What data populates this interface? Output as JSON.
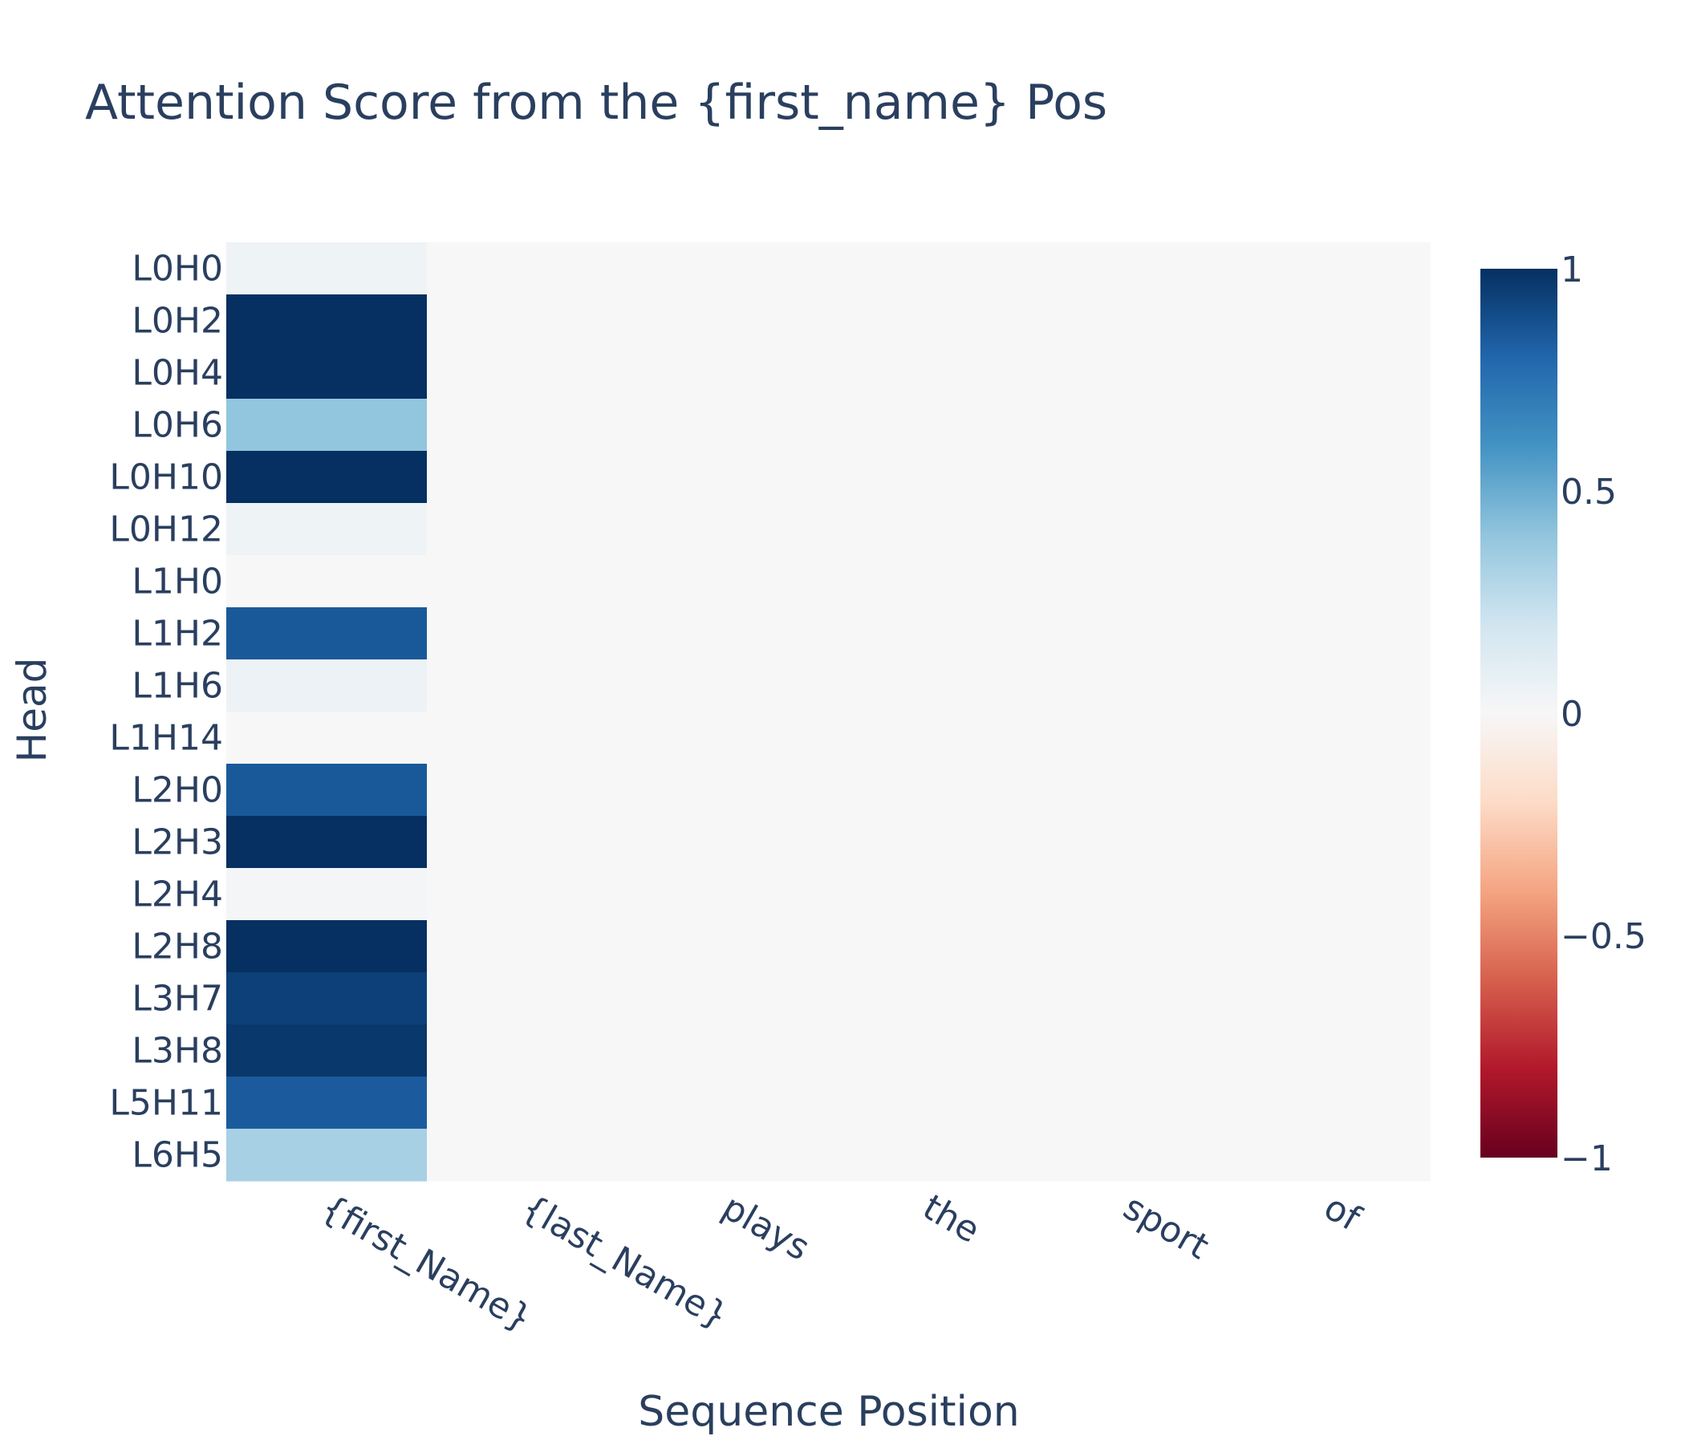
{
  "chart_data": {
    "type": "heatmap",
    "title": "Attention Score from the {first_name} Pos",
    "xlabel": "Sequence Position",
    "ylabel": "Head",
    "x": [
      "{first_Name}",
      "{last_Name}",
      "plays",
      "the",
      "sport",
      "of"
    ],
    "y": [
      "L0H0",
      "L0H2",
      "L0H4",
      "L0H6",
      "L0H10",
      "L0H12",
      "L1H0",
      "L1H2",
      "L1H6",
      "L1H14",
      "L2H0",
      "L2H3",
      "L2H4",
      "L2H8",
      "L3H7",
      "L3H8",
      "L5H11",
      "L6H5"
    ],
    "z": [
      [
        0.05,
        0,
        0,
        0,
        0,
        0
      ],
      [
        1.0,
        0,
        0,
        0,
        0,
        0
      ],
      [
        1.0,
        0,
        0,
        0,
        0,
        0
      ],
      [
        0.4,
        0,
        0,
        0,
        0,
        0
      ],
      [
        1.0,
        0,
        0,
        0,
        0,
        0
      ],
      [
        0.05,
        0,
        0,
        0,
        0,
        0
      ],
      [
        0.0,
        0,
        0,
        0,
        0,
        0
      ],
      [
        0.85,
        0,
        0,
        0,
        0,
        0
      ],
      [
        0.06,
        0,
        0,
        0,
        0,
        0
      ],
      [
        0.0,
        0,
        0,
        0,
        0,
        0
      ],
      [
        0.85,
        0,
        0,
        0,
        0,
        0
      ],
      [
        1.0,
        0,
        0,
        0,
        0,
        0
      ],
      [
        0.02,
        0,
        0,
        0,
        0,
        0
      ],
      [
        1.0,
        0,
        0,
        0,
        0,
        0
      ],
      [
        0.94,
        0,
        0,
        0,
        0,
        0
      ],
      [
        0.97,
        0,
        0,
        0,
        0,
        0
      ],
      [
        0.84,
        0,
        0,
        0,
        0,
        0
      ],
      [
        0.33,
        0,
        0,
        0,
        0,
        0
      ]
    ],
    "zmin": -1,
    "zmax": 1,
    "colorscale": "RdBu",
    "colorbar_ticks": [
      1,
      0.5,
      0,
      -0.5,
      -1
    ],
    "colorbar_tick_labels": [
      "1",
      "0.5",
      "0",
      "−0.5",
      "−1"
    ],
    "colors": {
      "scale": [
        "#67001f",
        "#b2182b",
        "#d6604d",
        "#f4a582",
        "#fddbc7",
        "#f7f7f7",
        "#d1e5f0",
        "#92c5de",
        "#4393c3",
        "#2166ac",
        "#053061"
      ],
      "text": "#2a3f5f"
    }
  }
}
